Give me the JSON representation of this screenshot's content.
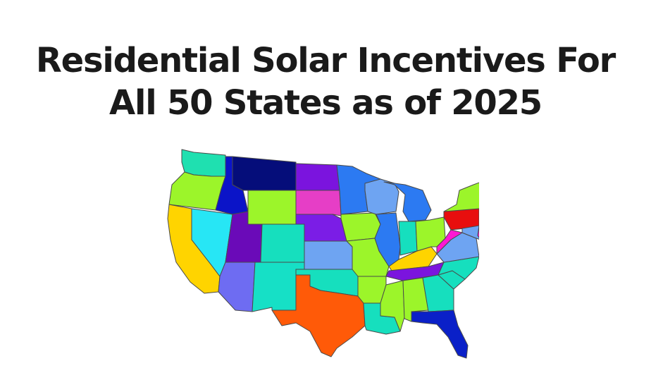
{
  "title": {
    "line1": "Residential Solar Incentives For",
    "line2": "All 50 States as of 2025"
  },
  "state_colors": {
    "WA": "#1fe0b0",
    "OR": "#9cf52a",
    "CA": "#ffd400",
    "NV": "#27e6f5",
    "ID": "#0b14c8",
    "MT": "#050d7a",
    "WY": "#9cf52a",
    "UT": "#6a0ab8",
    "AZ": "#6e6cf2",
    "CO": "#16dfbe",
    "NM": "#16e0c6",
    "ND": "#7b14de",
    "SD": "#e63ec6",
    "NE": "#7b1de6",
    "KS": "#6ea4f2",
    "OK": "#16dfbe",
    "TX": "#ff5a08",
    "MN": "#2c7af2",
    "IA": "#9cf52a",
    "MO": "#9cf52a",
    "AR": "#9cf52a",
    "LA": "#16dfbe",
    "WI": "#6ea4f2",
    "IL": "#2c7af2",
    "MS": "#9cf52a",
    "MI": "#2c7af2",
    "IN": "#16dfbe",
    "KY": "#ffd400",
    "TN": "#7b14de",
    "AL": "#9cf52a",
    "OH": "#9cf52a",
    "GA": "#16dfbe",
    "FL": "#0a20c8",
    "SC": "#16dfbe",
    "NC": "#16dfbe",
    "VA": "#6ea4f2",
    "WV": "#ff18d4",
    "PA": "#e80e0e",
    "NY": "#9cf52a",
    "VT": "#2c7af2",
    "NH": "#2c7af2",
    "ME": "#2c7af2",
    "MA": "#6e6cf2",
    "CT": "#9cf52a",
    "RI": "#6ea4f2",
    "NJ": "#2c7af2",
    "DE": "#ff18d4",
    "MD": "#6ea4f2"
  }
}
